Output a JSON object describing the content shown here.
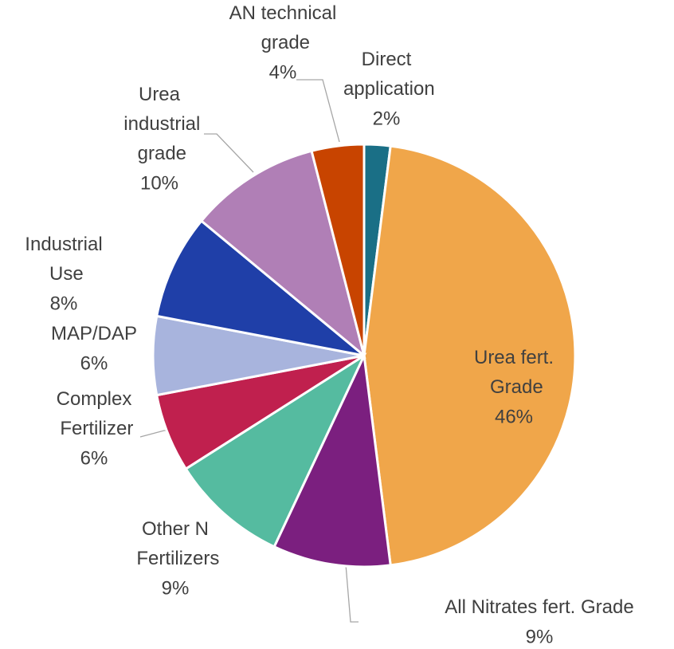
{
  "chart_data": {
    "type": "pie",
    "categories": [
      "Direct application",
      "Urea fert. Grade",
      "All Nitrates fert. Grade",
      "Other N Fertilizers",
      "Complex Fertilizer",
      "MAP/DAP",
      "Industrial Use",
      "Urea industrial grade",
      "AN technical grade"
    ],
    "values": [
      2,
      46,
      9,
      9,
      6,
      6,
      8,
      10,
      4
    ],
    "value_labels": [
      "2%",
      "46%",
      "9%",
      "9%",
      "6%",
      "6%",
      "8%",
      "10%",
      "4%"
    ],
    "colors": [
      "#1a6f86",
      "#f0a64a",
      "#7b1f7f",
      "#55bba0",
      "#c0204e",
      "#a8b4dd",
      "#1f3fa8",
      "#b07fb6",
      "#c84400"
    ]
  }
}
